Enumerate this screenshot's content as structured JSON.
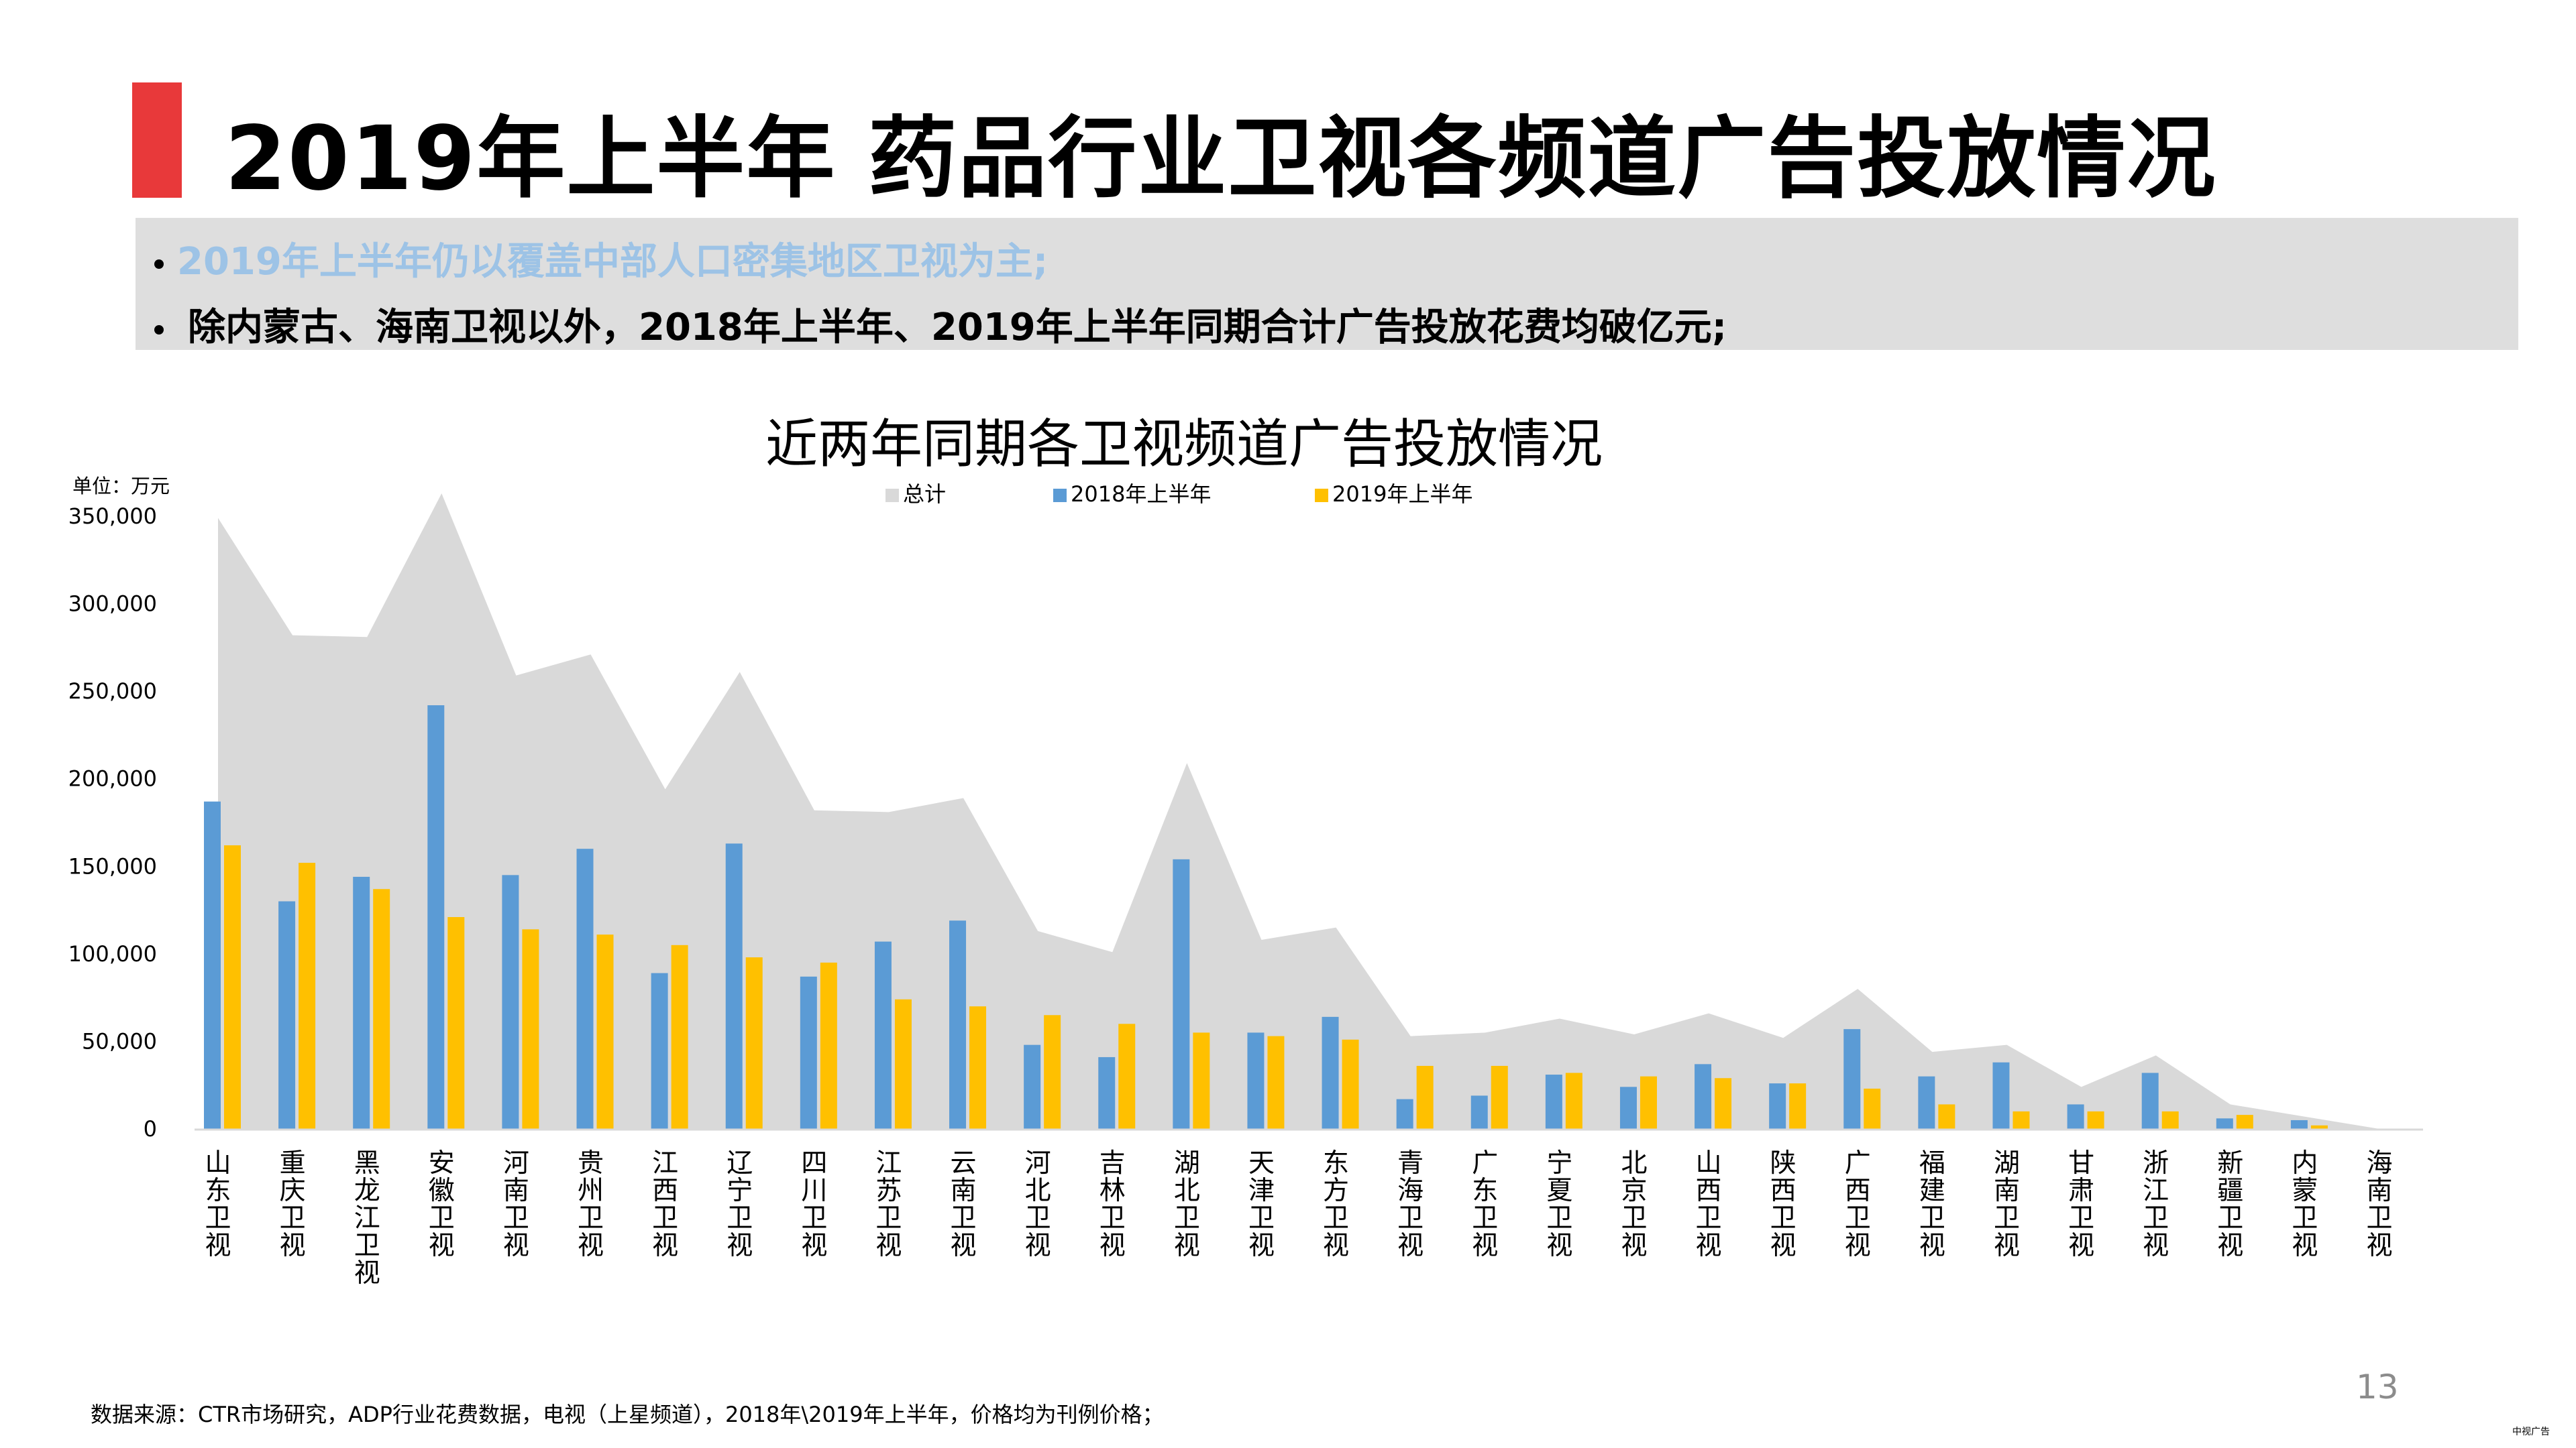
{
  "header": {
    "title": "2019年上半年 药品行业卫视各频道广告投放情况"
  },
  "notes": [
    "2019年上半年仍以覆盖中部人口密集地区卫视为主;",
    "除内蒙古、海南卫视以外，2018年上半年、2019年上半年同期合计广告投放花费均破亿元;"
  ],
  "footer": {
    "source": "数据来源：CTR市场研究，ADP行业花费数据，电视（上星频道），2018年\\2019年上半年，价格均为刊例价格；",
    "page_number": "13",
    "watermark": "中视广告"
  },
  "chart_data": {
    "type": "bar",
    "title": "近两年同期各卫视频道广告投放情况",
    "unit_label": "单位：万元",
    "xlabel": "",
    "ylabel": "",
    "ylim": [
      0,
      350000
    ],
    "yticks": [
      0,
      50000,
      100000,
      150000,
      200000,
      250000,
      300000,
      350000
    ],
    "ytick_labels": [
      "0",
      "50,000",
      "100,000",
      "150,000",
      "200,000",
      "250,000",
      "300,000",
      "350,000"
    ],
    "grid": false,
    "legend_position": "top-center",
    "categories": [
      "山东卫视",
      "重庆卫视",
      "黑龙江卫视",
      "安徽卫视",
      "河南卫视",
      "贵州卫视",
      "江西卫视",
      "辽宁卫视",
      "四川卫视",
      "江苏卫视",
      "云南卫视",
      "河北卫视",
      "吉林卫视",
      "湖北卫视",
      "天津卫视",
      "东方卫视",
      "青海卫视",
      "广东卫视",
      "宁夏卫视",
      "北京卫视",
      "山西卫视",
      "陕西卫视",
      "广西卫视",
      "福建卫视",
      "湖南卫视",
      "甘肃卫视",
      "浙江卫视",
      "新疆卫视",
      "内蒙卫视",
      "海南卫视"
    ],
    "series": [
      {
        "name": "总计",
        "type": "area",
        "color": "#d9d9d9",
        "values": [
          349000,
          282000,
          281000,
          363000,
          259000,
          271000,
          194000,
          261000,
          182000,
          181000,
          189000,
          113000,
          101000,
          209000,
          108000,
          115000,
          53000,
          55000,
          63000,
          54000,
          66000,
          52000,
          80000,
          44000,
          48000,
          24000,
          42000,
          14000,
          7000,
          0
        ]
      },
      {
        "name": "2018年上半年",
        "type": "bar",
        "color": "#5b9bd5",
        "values": [
          187000,
          130000,
          144000,
          242000,
          145000,
          160000,
          89000,
          163000,
          87000,
          107000,
          119000,
          48000,
          41000,
          154000,
          55000,
          64000,
          17000,
          19000,
          31000,
          24000,
          37000,
          26000,
          57000,
          30000,
          38000,
          14000,
          32000,
          6000,
          5000,
          0
        ]
      },
      {
        "name": "2019年上半年",
        "type": "bar",
        "color": "#ffc000",
        "values": [
          162000,
          152000,
          137000,
          121000,
          114000,
          111000,
          105000,
          98000,
          95000,
          74000,
          70000,
          65000,
          60000,
          55000,
          53000,
          51000,
          36000,
          36000,
          32000,
          30000,
          29000,
          26000,
          23000,
          14000,
          10000,
          10000,
          10000,
          8000,
          2000,
          0
        ]
      }
    ]
  }
}
